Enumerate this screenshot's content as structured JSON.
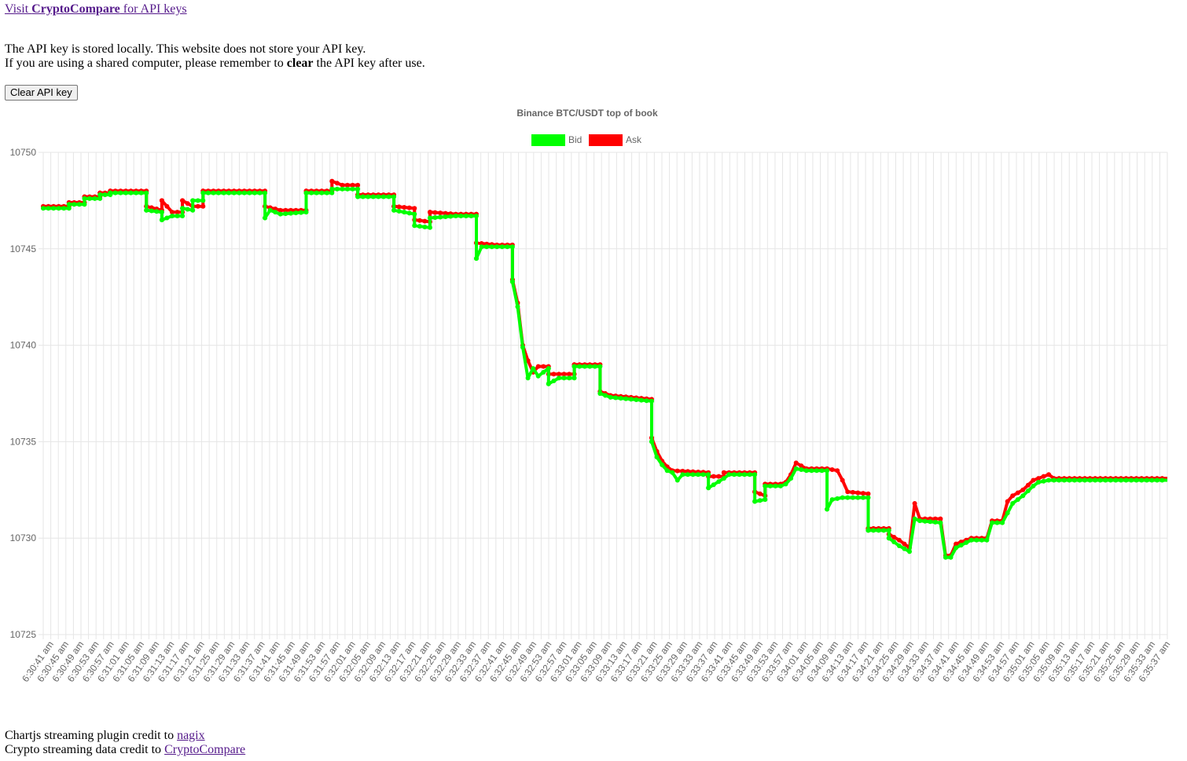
{
  "top_link": {
    "prefix": "Visit ",
    "brand": "CryptoCompare",
    "suffix": " for API keys"
  },
  "notice": {
    "line1": "The API key is stored locally. This website does not store your API key.",
    "line2_a": "If you are using a shared computer, please remember to ",
    "line2_bold": "clear",
    "line2_b": " the API key after use."
  },
  "clear_button": "Clear API key",
  "credits": {
    "line1_text": "Chartjs streaming plugin credit to ",
    "line1_link": "nagix",
    "line2_text": "Crypto streaming data credit to ",
    "line2_link": "CryptoCompare"
  },
  "colors": {
    "bid": "#00ff00",
    "ask": "#ff0000",
    "grid": "#e6e6e6",
    "axis_text": "#666666"
  },
  "chart_data": {
    "type": "line",
    "title": "Binance BTC/USDT top of book",
    "legend_position": "top",
    "grid": true,
    "ylim": [
      10725,
      10750
    ],
    "yticks": [
      10725,
      10730,
      10735,
      10740,
      10745,
      10750
    ],
    "xticks": [
      "6:30:41 am",
      "6:30:45 am",
      "6:30:49 am",
      "6:30:53 am",
      "6:30:57 am",
      "6:31:01 am",
      "6:31:05 am",
      "6:31:09 am",
      "6:31:13 am",
      "6:31:17 am",
      "6:31:21 am",
      "6:31:25 am",
      "6:31:29 am",
      "6:31:33 am",
      "6:31:37 am",
      "6:31:41 am",
      "6:31:45 am",
      "6:31:49 am",
      "6:31:53 am",
      "6:31:57 am",
      "6:32:01 am",
      "6:32:05 am",
      "6:32:09 am",
      "6:32:13 am",
      "6:32:17 am",
      "6:32:21 am",
      "6:32:25 am",
      "6:32:29 am",
      "6:32:33 am",
      "6:32:37 am",
      "6:32:41 am",
      "6:32:45 am",
      "6:32:49 am",
      "6:32:53 am",
      "6:32:57 am",
      "6:33:01 am",
      "6:33:05 am",
      "6:33:09 am",
      "6:33:13 am",
      "6:33:17 am",
      "6:33:21 am",
      "6:33:25 am",
      "6:33:29 am",
      "6:33:33 am",
      "6:33:37 am",
      "6:33:41 am",
      "6:33:45 am",
      "6:33:49 am",
      "6:33:53 am",
      "6:33:57 am",
      "6:34:01 am",
      "6:34:05 am",
      "6:34:09 am",
      "6:34:13 am",
      "6:34:17 am",
      "6:34:21 am",
      "6:34:25 am",
      "6:34:29 am",
      "6:34:33 am",
      "6:34:37 am",
      "6:34:41 am",
      "6:34:45 am",
      "6:34:49 am",
      "6:34:53 am",
      "6:34:57 am",
      "6:35:01 am",
      "6:35:05 am",
      "6:35:09 am",
      "6:35:13 am",
      "6:35:17 am",
      "6:35:21 am",
      "6:35:25 am",
      "6:35:29 am",
      "6:35:33 am",
      "6:35:37 am"
    ],
    "series": [
      {
        "name": "Ask",
        "color": "#ff0000",
        "points": [
          [
            0,
            10747.2
          ],
          [
            5,
            10747.2
          ],
          [
            5,
            10747.4
          ],
          [
            8,
            10747.4
          ],
          [
            8,
            10747.7
          ],
          [
            11,
            10747.7
          ],
          [
            11,
            10747.9
          ],
          [
            13,
            10747.9
          ],
          [
            13,
            10748.0
          ],
          [
            20,
            10748.0
          ],
          [
            20,
            10747.2
          ],
          [
            23,
            10747.0
          ],
          [
            23,
            10747.5
          ],
          [
            25,
            10746.9
          ],
          [
            27,
            10746.9
          ],
          [
            27,
            10747.5
          ],
          [
            29,
            10747.2
          ],
          [
            31,
            10747.2
          ],
          [
            31,
            10748.0
          ],
          [
            43,
            10748.0
          ],
          [
            43,
            10747.2
          ],
          [
            46,
            10747.0
          ],
          [
            51,
            10747.0
          ],
          [
            51,
            10748.0
          ],
          [
            56,
            10748.0
          ],
          [
            56,
            10748.5
          ],
          [
            58,
            10748.3
          ],
          [
            61,
            10748.3
          ],
          [
            61,
            10747.8
          ],
          [
            68,
            10747.8
          ],
          [
            68,
            10747.2
          ],
          [
            72,
            10747.1
          ],
          [
            72,
            10746.5
          ],
          [
            75,
            10746.4
          ],
          [
            75,
            10746.9
          ],
          [
            80,
            10746.8
          ],
          [
            84,
            10746.8
          ],
          [
            84,
            10745.3
          ],
          [
            88,
            10745.2
          ],
          [
            91,
            10745.2
          ],
          [
            91,
            10743.4
          ],
          [
            92,
            10742.2
          ],
          [
            93,
            10740.0
          ],
          [
            94,
            10739.2
          ],
          [
            95,
            10738.6
          ],
          [
            96,
            10738.9
          ],
          [
            98,
            10738.9
          ],
          [
            98,
            10738.5
          ],
          [
            103,
            10738.5
          ],
          [
            103,
            10739.0
          ],
          [
            108,
            10739.0
          ],
          [
            108,
            10737.6
          ],
          [
            110,
            10737.4
          ],
          [
            114,
            10737.3
          ],
          [
            118,
            10737.2
          ],
          [
            118,
            10735.2
          ],
          [
            119,
            10734.5
          ],
          [
            120,
            10734.0
          ],
          [
            121,
            10733.7
          ],
          [
            122,
            10733.5
          ],
          [
            129,
            10733.4
          ],
          [
            129,
            10733.2
          ],
          [
            132,
            10733.2
          ],
          [
            132,
            10733.4
          ],
          [
            138,
            10733.4
          ],
          [
            138,
            10732.4
          ],
          [
            140,
            10732.2
          ],
          [
            140,
            10732.8
          ],
          [
            143,
            10732.8
          ],
          [
            144,
            10732.9
          ],
          [
            145,
            10733.3
          ],
          [
            146,
            10733.9
          ],
          [
            148,
            10733.6
          ],
          [
            152,
            10733.6
          ],
          [
            154,
            10733.5
          ],
          [
            155,
            10733.0
          ],
          [
            156,
            10732.4
          ],
          [
            160,
            10732.3
          ],
          [
            160,
            10730.5
          ],
          [
            164,
            10730.5
          ],
          [
            164,
            10730.2
          ],
          [
            166,
            10729.9
          ],
          [
            168,
            10729.5
          ],
          [
            169,
            10731.8
          ],
          [
            170,
            10731.0
          ],
          [
            174,
            10731.0
          ],
          [
            175,
            10729.1
          ],
          [
            176,
            10729.1
          ],
          [
            177,
            10729.7
          ],
          [
            180,
            10730.0
          ],
          [
            183,
            10730.0
          ],
          [
            184,
            10730.9
          ],
          [
            186,
            10730.9
          ],
          [
            187,
            10731.9
          ],
          [
            188,
            10732.2
          ],
          [
            190,
            10732.5
          ],
          [
            192,
            10733.0
          ],
          [
            195,
            10733.3
          ],
          [
            196,
            10733.1
          ],
          [
            200,
            10733.1
          ],
          [
            218,
            10733.1
          ]
        ]
      },
      {
        "name": "Bid",
        "color": "#00ff00",
        "points": [
          [
            0,
            10747.1
          ],
          [
            5,
            10747.1
          ],
          [
            5,
            10747.3
          ],
          [
            8,
            10747.3
          ],
          [
            8,
            10747.6
          ],
          [
            11,
            10747.6
          ],
          [
            11,
            10747.8
          ],
          [
            13,
            10747.8
          ],
          [
            13,
            10747.9
          ],
          [
            20,
            10747.9
          ],
          [
            20,
            10747.0
          ],
          [
            23,
            10746.9
          ],
          [
            23,
            10746.5
          ],
          [
            25,
            10746.7
          ],
          [
            27,
            10746.7
          ],
          [
            27,
            10747.1
          ],
          [
            29,
            10747.0
          ],
          [
            29,
            10747.5
          ],
          [
            31,
            10747.5
          ],
          [
            31,
            10747.9
          ],
          [
            43,
            10747.9
          ],
          [
            43,
            10746.6
          ],
          [
            44,
            10747.0
          ],
          [
            46,
            10746.8
          ],
          [
            51,
            10746.9
          ],
          [
            51,
            10747.9
          ],
          [
            56,
            10747.9
          ],
          [
            56,
            10748.1
          ],
          [
            61,
            10748.1
          ],
          [
            61,
            10747.7
          ],
          [
            68,
            10747.7
          ],
          [
            68,
            10747.0
          ],
          [
            72,
            10746.8
          ],
          [
            72,
            10746.2
          ],
          [
            75,
            10746.1
          ],
          [
            75,
            10746.6
          ],
          [
            80,
            10746.7
          ],
          [
            84,
            10746.7
          ],
          [
            84,
            10744.5
          ],
          [
            85,
            10745.1
          ],
          [
            91,
            10745.1
          ],
          [
            91,
            10743.3
          ],
          [
            92,
            10742.0
          ],
          [
            93,
            10739.9
          ],
          [
            94,
            10738.3
          ],
          [
            95,
            10738.8
          ],
          [
            96,
            10738.4
          ],
          [
            98,
            10738.8
          ],
          [
            98,
            10738.0
          ],
          [
            100,
            10738.3
          ],
          [
            103,
            10738.3
          ],
          [
            103,
            10738.9
          ],
          [
            108,
            10738.9
          ],
          [
            108,
            10737.5
          ],
          [
            110,
            10737.3
          ],
          [
            114,
            10737.2
          ],
          [
            118,
            10737.1
          ],
          [
            118,
            10735.0
          ],
          [
            119,
            10734.2
          ],
          [
            120,
            10733.8
          ],
          [
            121,
            10733.5
          ],
          [
            122,
            10733.4
          ],
          [
            123,
            10733.0
          ],
          [
            124,
            10733.3
          ],
          [
            129,
            10733.3
          ],
          [
            129,
            10732.6
          ],
          [
            132,
            10733.1
          ],
          [
            133,
            10733.3
          ],
          [
            138,
            10733.3
          ],
          [
            138,
            10731.9
          ],
          [
            140,
            10732.0
          ],
          [
            140,
            10732.7
          ],
          [
            143,
            10732.7
          ],
          [
            144,
            10732.8
          ],
          [
            145,
            10733.1
          ],
          [
            146,
            10733.6
          ],
          [
            148,
            10733.5
          ],
          [
            152,
            10733.5
          ],
          [
            152,
            10731.5
          ],
          [
            153,
            10732.0
          ],
          [
            155,
            10732.1
          ],
          [
            156,
            10732.1
          ],
          [
            160,
            10732.1
          ],
          [
            160,
            10730.4
          ],
          [
            164,
            10730.4
          ],
          [
            164,
            10730.0
          ],
          [
            166,
            10729.6
          ],
          [
            168,
            10729.3
          ],
          [
            169,
            10731.0
          ],
          [
            170,
            10730.9
          ],
          [
            174,
            10730.8
          ],
          [
            175,
            10729.0
          ],
          [
            176,
            10729.0
          ],
          [
            177,
            10729.5
          ],
          [
            180,
            10729.9
          ],
          [
            183,
            10729.9
          ],
          [
            184,
            10730.8
          ],
          [
            186,
            10730.8
          ],
          [
            187,
            10731.3
          ],
          [
            188,
            10731.8
          ],
          [
            190,
            10732.2
          ],
          [
            192,
            10732.7
          ],
          [
            193,
            10732.9
          ],
          [
            195,
            10733.0
          ],
          [
            200,
            10733.0
          ],
          [
            218,
            10733.0
          ]
        ]
      }
    ]
  }
}
